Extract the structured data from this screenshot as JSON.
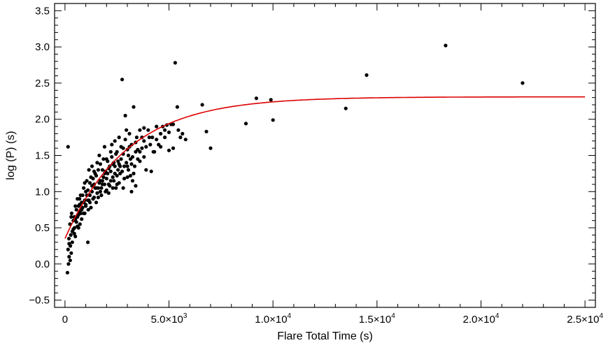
{
  "chart_data": {
    "type": "scatter",
    "title": "",
    "xlabel": "Flare Total Time (s)",
    "ylabel": "log (P) (s)",
    "xlim": [
      -500,
      25500
    ],
    "ylim": [
      -0.6,
      3.6
    ],
    "grid": false,
    "legend": "none",
    "x_ticks": [
      {
        "value": 0,
        "label": "0"
      },
      {
        "value": 5000,
        "label": "5.0×10",
        "exp": "3"
      },
      {
        "value": 10000,
        "label": "1.0×10",
        "exp": "4"
      },
      {
        "value": 15000,
        "label": "1.5×10",
        "exp": "4"
      },
      {
        "value": 20000,
        "label": "2.0×10",
        "exp": "4"
      },
      {
        "value": 25000,
        "label": "2.5×10",
        "exp": "4"
      }
    ],
    "x_minor_ticks": [
      1000,
      2000,
      3000,
      4000,
      6000,
      7000,
      8000,
      9000,
      11000,
      12000,
      13000,
      14000,
      16000,
      17000,
      18000,
      19000,
      21000,
      22000,
      23000,
      24000
    ],
    "y_ticks": [
      {
        "value": -0.5,
        "label": "−0.5"
      },
      {
        "value": 0.0,
        "label": "0.0"
      },
      {
        "value": 0.5,
        "label": "0.5"
      },
      {
        "value": 1.0,
        "label": "1.0"
      },
      {
        "value": 1.5,
        "label": "1.5"
      },
      {
        "value": 2.0,
        "label": "2.0"
      },
      {
        "value": 2.5,
        "label": "2.5"
      },
      {
        "value": 3.0,
        "label": "3.0"
      },
      {
        "value": 3.5,
        "label": "3.5"
      }
    ],
    "y_minor_ticks": [
      -0.4,
      -0.3,
      -0.2,
      -0.1,
      0.1,
      0.2,
      0.3,
      0.4,
      0.6,
      0.7,
      0.8,
      0.9,
      1.1,
      1.2,
      1.3,
      1.4,
      1.6,
      1.7,
      1.8,
      1.9,
      2.1,
      2.2,
      2.3,
      2.4,
      2.6,
      2.7,
      2.8,
      2.9,
      3.1,
      3.2,
      3.3,
      3.4,
      3.6
    ],
    "series": [
      {
        "kind": "points",
        "color": "#000000",
        "points": [
          [
            150,
            1.62
          ],
          [
            120,
            -0.12
          ],
          [
            170,
            0.0
          ],
          [
            200,
            0.1
          ],
          [
            150,
            0.2
          ],
          [
            260,
            0.25
          ],
          [
            190,
            0.35
          ],
          [
            280,
            0.4
          ],
          [
            350,
            0.45
          ],
          [
            240,
            0.55
          ],
          [
            400,
            0.6
          ],
          [
            320,
            0.7
          ],
          [
            460,
            0.5
          ],
          [
            500,
            0.62
          ],
          [
            550,
            0.75
          ],
          [
            600,
            0.65
          ],
          [
            650,
            0.8
          ],
          [
            700,
            0.9
          ],
          [
            720,
            0.55
          ],
          [
            760,
            0.7
          ],
          [
            800,
            0.85
          ],
          [
            850,
            0.95
          ],
          [
            900,
            1.05
          ],
          [
            950,
            0.88
          ],
          [
            1000,
            1.0
          ],
          [
            1050,
            1.15
          ],
          [
            1100,
            0.3
          ],
          [
            1120,
            0.75
          ],
          [
            1150,
            1.3
          ],
          [
            1200,
            0.95
          ],
          [
            1250,
            1.2
          ],
          [
            1300,
            1.35
          ],
          [
            1350,
            0.9
          ],
          [
            1400,
            1.1
          ],
          [
            1450,
            1.25
          ],
          [
            1500,
            0.85
          ],
          [
            1550,
            1.4
          ],
          [
            1600,
            1.05
          ],
          [
            1650,
            1.5
          ],
          [
            1700,
            1.15
          ],
          [
            1750,
            0.95
          ],
          [
            1800,
            1.3
          ],
          [
            1850,
            1.2
          ],
          [
            1900,
            1.62
          ],
          [
            1950,
            1.0
          ],
          [
            2000,
            1.45
          ],
          [
            2050,
            1.25
          ],
          [
            2100,
            1.1
          ],
          [
            2150,
            1.35
          ],
          [
            2200,
            1.55
          ],
          [
            2250,
            1.65
          ],
          [
            2300,
            1.2
          ],
          [
            2350,
            1.4
          ],
          [
            2400,
            1.7
          ],
          [
            2450,
            1.05
          ],
          [
            2500,
            1.55
          ],
          [
            2550,
            1.3
          ],
          [
            2600,
            1.75
          ],
          [
            2650,
            1.25
          ],
          [
            2700,
            1.45
          ],
          [
            2750,
            2.55
          ],
          [
            2800,
            1.6
          ],
          [
            2850,
            1.35
          ],
          [
            2900,
            2.05
          ],
          [
            2950,
            1.85
          ],
          [
            3000,
            1.2
          ],
          [
            3050,
            1.5
          ],
          [
            3100,
            1.8
          ],
          [
            3150,
            1.45
          ],
          [
            3200,
            1.65
          ],
          [
            3250,
            1.15
          ],
          [
            3300,
            2.17
          ],
          [
            3350,
            1.35
          ],
          [
            3400,
            1.55
          ],
          [
            3450,
            1.75
          ],
          [
            3500,
            1.45
          ],
          [
            3600,
            1.85
          ],
          [
            3700,
            1.6
          ],
          [
            3800,
            1.7
          ],
          [
            3900,
            1.3
          ],
          [
            4000,
            1.85
          ],
          [
            4100,
            1.65
          ],
          [
            4200,
            1.75
          ],
          [
            4300,
            1.55
          ],
          [
            4400,
            1.9
          ],
          [
            4500,
            1.65
          ],
          [
            4600,
            1.8
          ],
          [
            4700,
            1.9
          ],
          [
            4800,
            1.75
          ],
          [
            4900,
            1.92
          ],
          [
            5000,
            1.57
          ],
          [
            5100,
            1.93
          ],
          [
            5200,
            1.6
          ],
          [
            5300,
            2.78
          ],
          [
            5400,
            2.17
          ],
          [
            5450,
            1.85
          ],
          [
            5550,
            1.75
          ],
          [
            5650,
            1.8
          ],
          [
            5800,
            1.72
          ],
          [
            6600,
            2.2
          ],
          [
            6800,
            1.83
          ],
          [
            7000,
            1.6
          ],
          [
            8700,
            1.94
          ],
          [
            9200,
            2.29
          ],
          [
            9900,
            2.27
          ],
          [
            10000,
            1.99
          ],
          [
            13500,
            2.15
          ],
          [
            14500,
            2.61
          ],
          [
            18300,
            3.02
          ],
          [
            22000,
            2.5
          ],
          [
            300,
            0.65
          ],
          [
            450,
            0.42
          ],
          [
            500,
            0.8
          ],
          [
            550,
            0.58
          ],
          [
            600,
            0.9
          ],
          [
            650,
            0.5
          ],
          [
            700,
            0.72
          ],
          [
            750,
            0.95
          ],
          [
            800,
            0.62
          ],
          [
            850,
            0.78
          ],
          [
            900,
            0.85
          ],
          [
            950,
            0.7
          ],
          [
            1000,
            0.82
          ],
          [
            1050,
            0.95
          ],
          [
            1100,
            1.02
          ],
          [
            1150,
            0.88
          ],
          [
            1200,
            1.12
          ],
          [
            1250,
            0.78
          ],
          [
            1300,
            1.0
          ],
          [
            1350,
            1.18
          ],
          [
            1400,
            0.92
          ],
          [
            1450,
            1.05
          ],
          [
            1500,
            1.22
          ],
          [
            1550,
            0.98
          ],
          [
            1600,
            1.3
          ],
          [
            1650,
            1.12
          ],
          [
            1700,
            1.38
          ],
          [
            1750,
            1.05
          ],
          [
            1800,
            1.15
          ],
          [
            1850,
            1.45
          ],
          [
            1900,
            1.1
          ],
          [
            1950,
            1.28
          ],
          [
            2000,
            1.18
          ],
          [
            2050,
            1.42
          ],
          [
            2100,
            1.32
          ],
          [
            2150,
            1.08
          ],
          [
            2200,
            1.28
          ],
          [
            2250,
            1.48
          ],
          [
            2300,
            1.38
          ],
          [
            2350,
            1.15
          ],
          [
            2400,
            1.35
          ],
          [
            2450,
            1.52
          ],
          [
            2500,
            1.22
          ],
          [
            2550,
            1.42
          ],
          [
            2600,
            1.12
          ],
          [
            2650,
            1.35
          ],
          [
            2700,
            1.62
          ],
          [
            2750,
            1.28
          ],
          [
            2800,
            1.52
          ],
          [
            2850,
            1.18
          ],
          [
            2900,
            1.72
          ],
          [
            2950,
            1.4
          ],
          [
            3000,
            1.58
          ],
          [
            3050,
            1.3
          ],
          [
            3100,
            1.62
          ],
          [
            3150,
            1.22
          ],
          [
            3200,
            1.38
          ],
          [
            3250,
            1.48
          ],
          [
            3300,
            1.25
          ],
          [
            3400,
            1.68
          ],
          [
            3500,
            1.58
          ],
          [
            3600,
            1.42
          ],
          [
            3700,
            1.75
          ],
          [
            3800,
            1.88
          ],
          [
            3900,
            1.62
          ],
          [
            4050,
            1.75
          ],
          [
            4150,
            1.28
          ],
          [
            4250,
            1.55
          ],
          [
            4400,
            1.72
          ],
          [
            4600,
            1.62
          ],
          [
            4800,
            1.85
          ],
          [
            5000,
            1.82
          ],
          [
            5200,
            1.93
          ],
          [
            200,
            0.28
          ],
          [
            250,
            0.05
          ],
          [
            300,
            0.15
          ],
          [
            350,
            0.3
          ],
          [
            400,
            0.48
          ],
          [
            450,
            0.65
          ],
          [
            500,
            0.38
          ],
          [
            600,
            0.52
          ],
          [
            650,
            0.68
          ],
          [
            700,
            0.82
          ],
          [
            800,
            0.75
          ],
          [
            900,
            0.7
          ],
          [
            950,
            1.12
          ],
          [
            1000,
            0.8
          ],
          [
            1100,
            0.88
          ],
          [
            1200,
            0.85
          ],
          [
            1300,
            1.08
          ],
          [
            1400,
            1.28
          ],
          [
            1500,
            1.05
          ],
          [
            1600,
            0.92
          ],
          [
            1700,
            1.0
          ],
          [
            1800,
            1.1
          ],
          [
            1900,
            1.25
          ],
          [
            2000,
            1.02
          ],
          [
            2100,
            0.98
          ],
          [
            2200,
            1.15
          ],
          [
            2300,
            1.05
          ],
          [
            2400,
            1.25
          ],
          [
            2500,
            1.1
          ],
          [
            2600,
            1.38
          ],
          [
            2800,
            1.05
          ],
          [
            3000,
            1.35
          ],
          [
            3200,
            1.0
          ],
          [
            3400,
            1.08
          ],
          [
            3600,
            1.55
          ],
          [
            3800,
            1.48
          ]
        ]
      },
      {
        "kind": "curve",
        "color": "#dd0000",
        "description": "exponential saturation fit",
        "model": {
          "a": 2.31,
          "b": 1.96,
          "tau": 3000
        }
      }
    ]
  }
}
